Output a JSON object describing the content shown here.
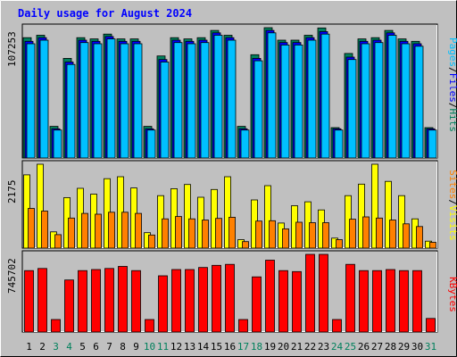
{
  "chart_data": [
    {
      "type": "bar",
      "title": "Daily usage for August 2024",
      "ylabel_top": "107253",
      "legend": [
        "Pages",
        "/",
        "Files",
        "/",
        "Hits"
      ],
      "categories": [
        "1",
        "2",
        "3",
        "4",
        "5",
        "6",
        "7",
        "8",
        "9",
        "10",
        "11",
        "12",
        "13",
        "14",
        "15",
        "16",
        "17",
        "18",
        "19",
        "20",
        "21",
        "22",
        "23",
        "24",
        "25",
        "26",
        "27",
        "28",
        "29",
        "30",
        "31"
      ],
      "weekend_days": [
        "3",
        "4",
        "10",
        "11",
        "17",
        "18",
        "24",
        "25",
        "31"
      ],
      "ylim": [
        0,
        107253
      ],
      "series": [
        {
          "name": "Hits",
          "color": "#00805c",
          "values": [
            99000,
            101000,
            26000,
            82000,
            99000,
            98000,
            102000,
            98000,
            98000,
            26000,
            84000,
            99000,
            98000,
            99000,
            105000,
            101000,
            26000,
            85000,
            107253,
            97000,
            97000,
            101000,
            107000,
            25000,
            86000,
            98000,
            99000,
            105000,
            98000,
            96000,
            25000
          ]
        },
        {
          "name": "Files",
          "color": "#0000ff",
          "values": [
            96000,
            99000,
            24000,
            79000,
            97000,
            96000,
            100000,
            96000,
            96000,
            24000,
            81000,
            97000,
            96000,
            97000,
            103000,
            99000,
            24000,
            82000,
            105000,
            95000,
            95000,
            99000,
            104000,
            24000,
            83000,
            96000,
            97000,
            103000,
            96000,
            94000,
            24000
          ]
        },
        {
          "name": "Pages",
          "color": "#00c0ff",
          "values": [
            94000,
            97000,
            23000,
            77000,
            95000,
            94000,
            98000,
            94000,
            94000,
            23000,
            79000,
            95000,
            94000,
            95000,
            101000,
            97000,
            23000,
            80000,
            103000,
            93000,
            93000,
            97000,
            102000,
            23000,
            81000,
            94000,
            95000,
            101000,
            94000,
            92000,
            23000
          ]
        }
      ]
    },
    {
      "type": "bar",
      "ylabel_top": "2175",
      "legend": [
        "Sites",
        "/",
        "Visits"
      ],
      "categories": [
        "1",
        "2",
        "3",
        "4",
        "5",
        "6",
        "7",
        "8",
        "9",
        "10",
        "11",
        "12",
        "13",
        "14",
        "15",
        "16",
        "17",
        "18",
        "19",
        "20",
        "21",
        "22",
        "23",
        "24",
        "25",
        "26",
        "27",
        "28",
        "29",
        "30",
        "31"
      ],
      "ylim": [
        0,
        2175
      ],
      "series": [
        {
          "name": "Visits",
          "color": "#ffff00",
          "values": [
            1900,
            2175,
            420,
            1310,
            1550,
            1400,
            1800,
            1850,
            1560,
            400,
            1360,
            1540,
            1650,
            1320,
            1520,
            1850,
            220,
            1250,
            1620,
            650,
            1100,
            1200,
            990,
            260,
            1360,
            1660,
            2175,
            1730,
            1360,
            760,
            180
          ]
        },
        {
          "name": "Sites",
          "color": "#ff8000",
          "values": [
            1030,
            960,
            350,
            780,
            900,
            880,
            930,
            930,
            900,
            340,
            760,
            820,
            760,
            730,
            770,
            800,
            170,
            700,
            710,
            500,
            670,
            660,
            660,
            220,
            750,
            810,
            780,
            730,
            630,
            560,
            150
          ]
        }
      ]
    },
    {
      "type": "bar",
      "ylabel_top": "745702",
      "legend": [
        "KBytes"
      ],
      "categories": [
        "1",
        "2",
        "3",
        "4",
        "5",
        "6",
        "7",
        "8",
        "9",
        "10",
        "11",
        "12",
        "13",
        "14",
        "15",
        "16",
        "17",
        "18",
        "19",
        "20",
        "21",
        "22",
        "23",
        "24",
        "25",
        "26",
        "27",
        "28",
        "29",
        "30",
        "31"
      ],
      "ylim": [
        0,
        745702
      ],
      "series": [
        {
          "name": "KBytes",
          "color": "#ff0000",
          "values": [
            590000,
            610000,
            120000,
            500000,
            590000,
            600000,
            610000,
            630000,
            590000,
            120000,
            540000,
            600000,
            600000,
            620000,
            640000,
            650000,
            120000,
            530000,
            690000,
            590000,
            580000,
            745702,
            745702,
            120000,
            650000,
            590000,
            590000,
            600000,
            590000,
            590000,
            130000
          ]
        }
      ]
    }
  ]
}
